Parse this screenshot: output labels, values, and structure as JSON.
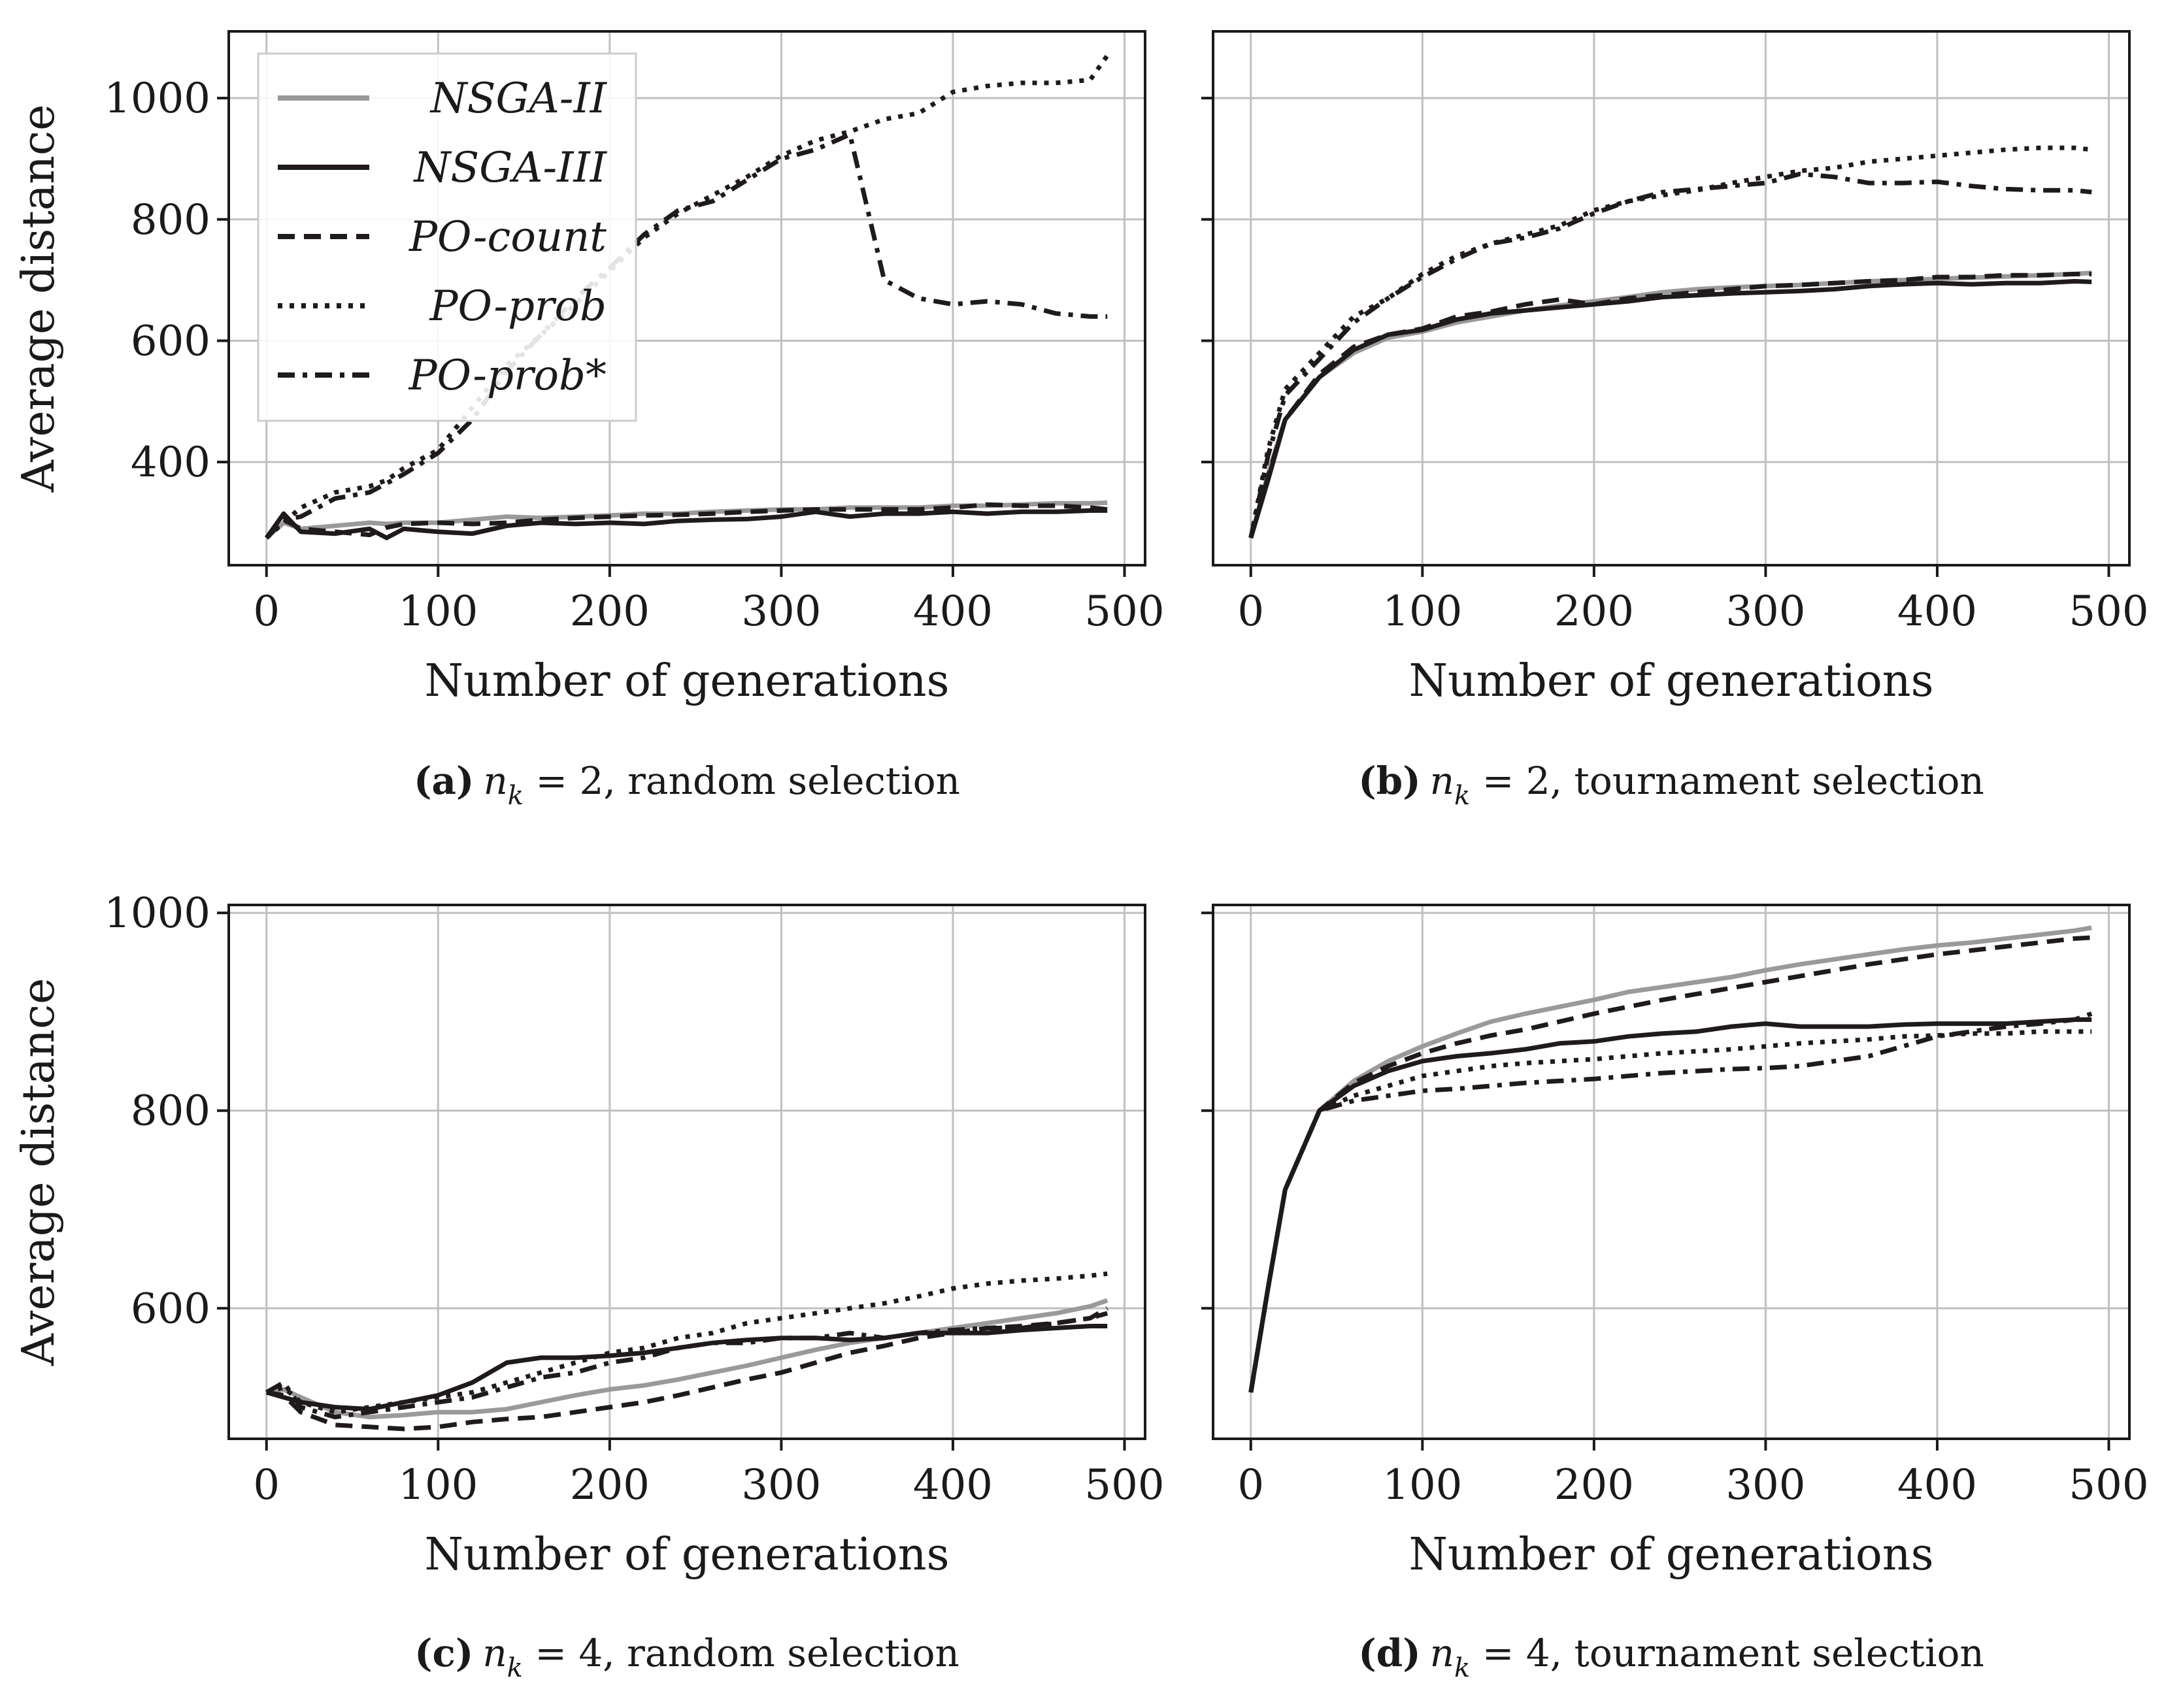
{
  "figure": {
    "legend": [
      {
        "name": "NSGA-II",
        "style": "solid",
        "color": "#9a9a9a"
      },
      {
        "name": "NSGA-III",
        "style": "solid",
        "color": "#1f1a1c"
      },
      {
        "name": "PO-count",
        "style": "dashed",
        "color": "#1f1a1c"
      },
      {
        "name": "PO-prob",
        "style": "dotted",
        "color": "#1f1a1c"
      },
      {
        "name": "PO-prob*",
        "style": "dashdot",
        "color": "#1f1a1c"
      }
    ]
  },
  "chart_data": [
    {
      "type": "line",
      "panel": "a",
      "caption_label": "(a)",
      "caption_var": "n",
      "caption_sub": "k",
      "caption_rest": " = 2, random selection",
      "xlabel": "Number of generations",
      "ylabel": "Average distance",
      "xlim": [
        -22,
        512
      ],
      "ylim": [
        230,
        1110
      ],
      "xticks": [
        0,
        100,
        200,
        300,
        400,
        500
      ],
      "yticks": [
        400,
        600,
        800,
        1000
      ],
      "grid": true,
      "legend_position": "top-left",
      "x": [
        0,
        10,
        20,
        40,
        60,
        70,
        80,
        100,
        120,
        140,
        160,
        180,
        200,
        220,
        240,
        260,
        280,
        300,
        320,
        340,
        360,
        380,
        400,
        420,
        440,
        460,
        480,
        490
      ],
      "series": [
        {
          "name": "NSGA-II",
          "values": [
            275,
            300,
            290,
            295,
            300,
            298,
            300,
            300,
            305,
            310,
            308,
            310,
            312,
            315,
            315,
            318,
            320,
            322,
            322,
            325,
            325,
            325,
            328,
            328,
            330,
            332,
            332,
            333
          ]
        },
        {
          "name": "NSGA-III",
          "values": [
            275,
            315,
            285,
            282,
            290,
            275,
            290,
            285,
            282,
            295,
            300,
            298,
            300,
            298,
            303,
            305,
            306,
            310,
            318,
            310,
            315,
            315,
            318,
            315,
            318,
            318,
            320,
            320
          ]
        },
        {
          "name": "PO-count",
          "values": [
            275,
            305,
            290,
            285,
            280,
            292,
            298,
            300,
            298,
            300,
            305,
            308,
            310,
            312,
            313,
            315,
            318,
            320,
            322,
            322,
            322,
            322,
            325,
            330,
            328,
            328,
            325,
            322
          ]
        },
        {
          "name": "PO-prob",
          "values": [
            275,
            300,
            325,
            350,
            360,
            370,
            390,
            420,
            490,
            560,
            610,
            660,
            715,
            770,
            810,
            840,
            870,
            905,
            930,
            945,
            965,
            975,
            1010,
            1020,
            1025,
            1025,
            1030,
            1070
          ]
        },
        {
          "name": "PO-prob*",
          "values": [
            275,
            305,
            310,
            340,
            350,
            365,
            380,
            415,
            470,
            550,
            610,
            670,
            720,
            775,
            815,
            830,
            865,
            900,
            915,
            940,
            700,
            670,
            660,
            665,
            660,
            645,
            640,
            640
          ]
        }
      ]
    },
    {
      "type": "line",
      "panel": "b",
      "caption_label": "(b)",
      "caption_var": "n",
      "caption_sub": "k",
      "caption_rest": " = 2, tournament selection",
      "xlabel": "Number of generations",
      "ylabel": "",
      "xlim": [
        -22,
        512
      ],
      "ylim": [
        230,
        1110
      ],
      "xticks": [
        0,
        100,
        200,
        300,
        400,
        500
      ],
      "yticks": [
        400,
        600,
        800,
        1000
      ],
      "grid": true,
      "x": [
        0,
        10,
        20,
        40,
        60,
        80,
        100,
        120,
        140,
        160,
        180,
        200,
        220,
        240,
        260,
        280,
        300,
        320,
        340,
        360,
        380,
        400,
        420,
        440,
        460,
        480,
        490
      ],
      "series": [
        {
          "name": "NSGA-II",
          "values": [
            275,
            380,
            470,
            540,
            580,
            605,
            615,
            630,
            640,
            650,
            658,
            665,
            672,
            680,
            685,
            688,
            690,
            692,
            695,
            698,
            700,
            702,
            704,
            706,
            708,
            710,
            712
          ]
        },
        {
          "name": "NSGA-III",
          "values": [
            275,
            370,
            470,
            540,
            585,
            610,
            618,
            635,
            645,
            650,
            655,
            660,
            665,
            672,
            675,
            678,
            680,
            682,
            685,
            690,
            693,
            695,
            693,
            695,
            695,
            698,
            697
          ]
        },
        {
          "name": "PO-count",
          "values": [
            275,
            375,
            470,
            545,
            590,
            610,
            620,
            640,
            648,
            660,
            668,
            660,
            670,
            675,
            680,
            685,
            690,
            692,
            695,
            698,
            700,
            705,
            705,
            708,
            708,
            710,
            710
          ]
        },
        {
          "name": "PO-prob",
          "values": [
            275,
            420,
            520,
            580,
            640,
            670,
            710,
            740,
            760,
            775,
            790,
            815,
            830,
            840,
            848,
            860,
            870,
            880,
            885,
            895,
            900,
            905,
            910,
            915,
            918,
            918,
            915
          ]
        },
        {
          "name": "PO-prob*",
          "values": [
            275,
            410,
            510,
            570,
            630,
            670,
            705,
            735,
            760,
            770,
            785,
            810,
            830,
            845,
            850,
            855,
            860,
            875,
            870,
            860,
            860,
            862,
            855,
            850,
            848,
            848,
            845
          ]
        }
      ]
    },
    {
      "type": "line",
      "panel": "c",
      "caption_label": "(c)",
      "caption_var": "n",
      "caption_sub": "k",
      "caption_rest": " = 4, random selection",
      "xlabel": "Number of generations",
      "ylabel": "Average distance",
      "xlim": [
        -22,
        512
      ],
      "ylim": [
        468,
        1008
      ],
      "xticks": [
        0,
        100,
        200,
        300,
        400,
        500
      ],
      "yticks": [
        600,
        800,
        1000
      ],
      "grid": true,
      "x": [
        0,
        10,
        20,
        40,
        60,
        80,
        100,
        120,
        140,
        160,
        180,
        200,
        220,
        240,
        260,
        280,
        300,
        320,
        340,
        360,
        380,
        400,
        420,
        440,
        460,
        480,
        490
      ],
      "series": [
        {
          "name": "NSGA-II",
          "values": [
            515,
            518,
            510,
            495,
            490,
            492,
            495,
            495,
            498,
            505,
            512,
            518,
            522,
            528,
            535,
            542,
            550,
            558,
            565,
            570,
            575,
            580,
            585,
            590,
            595,
            602,
            608
          ]
        },
        {
          "name": "NSGA-III",
          "values": [
            515,
            510,
            505,
            500,
            498,
            505,
            512,
            525,
            545,
            550,
            550,
            552,
            555,
            560,
            565,
            568,
            570,
            570,
            568,
            570,
            575,
            575,
            575,
            578,
            580,
            582,
            582
          ]
        },
        {
          "name": "PO-count",
          "values": [
            515,
            512,
            495,
            482,
            480,
            478,
            480,
            485,
            488,
            490,
            495,
            500,
            505,
            512,
            520,
            528,
            535,
            545,
            555,
            562,
            570,
            575,
            580,
            582,
            585,
            590,
            600
          ]
        },
        {
          "name": "PO-prob",
          "values": [
            515,
            520,
            505,
            495,
            500,
            505,
            510,
            515,
            525,
            535,
            545,
            555,
            560,
            570,
            575,
            585,
            590,
            595,
            600,
            605,
            612,
            620,
            625,
            628,
            630,
            633,
            635
          ]
        },
        {
          "name": "PO-prob*",
          "values": [
            515,
            525,
            500,
            490,
            495,
            500,
            505,
            510,
            520,
            530,
            535,
            545,
            550,
            560,
            565,
            565,
            570,
            570,
            575,
            570,
            575,
            578,
            580,
            580,
            585,
            590,
            595
          ]
        }
      ]
    },
    {
      "type": "line",
      "panel": "d",
      "caption_label": "(d)",
      "caption_var": "n",
      "caption_sub": "k",
      "caption_rest": " = 4, tournament selection",
      "xlabel": "Number of generations",
      "ylabel": "",
      "xlim": [
        -22,
        512
      ],
      "ylim": [
        468,
        1008
      ],
      "xticks": [
        0,
        100,
        200,
        300,
        400,
        500
      ],
      "yticks": [
        600,
        800,
        1000
      ],
      "grid": true,
      "x": [
        0,
        10,
        20,
        40,
        60,
        80,
        100,
        120,
        140,
        160,
        180,
        200,
        220,
        240,
        260,
        280,
        300,
        320,
        340,
        360,
        380,
        400,
        420,
        440,
        460,
        480,
        490
      ],
      "series": [
        {
          "name": "NSGA-II",
          "values": [
            515,
            620,
            720,
            800,
            830,
            850,
            865,
            878,
            890,
            898,
            905,
            912,
            920,
            925,
            930,
            935,
            942,
            948,
            953,
            958,
            963,
            967,
            970,
            974,
            978,
            982,
            985
          ]
        },
        {
          "name": "NSGA-III",
          "values": [
            515,
            620,
            720,
            800,
            825,
            840,
            850,
            855,
            858,
            862,
            868,
            870,
            875,
            878,
            880,
            885,
            888,
            885,
            885,
            885,
            887,
            888,
            888,
            888,
            890,
            892,
            892
          ]
        },
        {
          "name": "PO-count",
          "values": [
            515,
            620,
            720,
            800,
            828,
            845,
            858,
            868,
            876,
            882,
            890,
            898,
            905,
            912,
            918,
            924,
            930,
            936,
            942,
            948,
            953,
            958,
            962,
            966,
            970,
            974,
            975
          ]
        },
        {
          "name": "PO-prob",
          "values": [
            515,
            620,
            720,
            800,
            815,
            825,
            835,
            840,
            845,
            848,
            850,
            852,
            855,
            858,
            860,
            862,
            865,
            868,
            870,
            872,
            875,
            876,
            878,
            878,
            880,
            880,
            880
          ]
        },
        {
          "name": "PO-prob*",
          "values": [
            515,
            620,
            720,
            800,
            810,
            815,
            820,
            822,
            825,
            828,
            830,
            832,
            835,
            838,
            840,
            842,
            843,
            845,
            850,
            855,
            865,
            875,
            880,
            885,
            888,
            892,
            898
          ]
        }
      ]
    }
  ]
}
